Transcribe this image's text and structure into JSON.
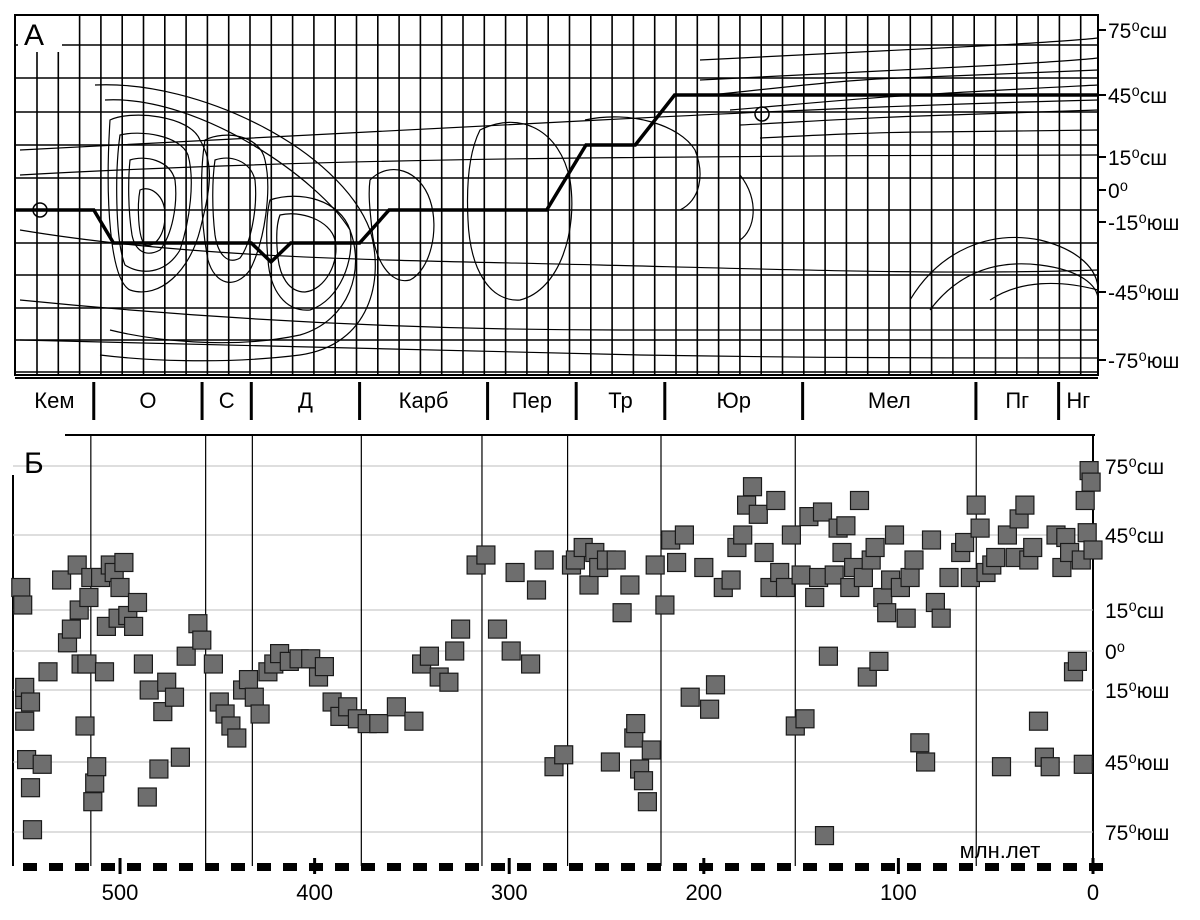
{
  "chart_data": [
    {
      "type": "line",
      "panel_label": "А",
      "y_tick_labels": [
        "75⁰сш",
        "45⁰сш",
        "15⁰сш",
        "0⁰",
        "-15⁰юш",
        "-45⁰юш",
        "-75⁰юш"
      ],
      "y_ticks": [
        75,
        45,
        15,
        0,
        -15,
        -45,
        -75
      ],
      "ylim": [
        -90,
        90
      ],
      "xlim": [
        550,
        0
      ],
      "x_reversed": true,
      "periods": [
        {
          "label": "Кем",
          "start": 550,
          "end": 510
        },
        {
          "label": "О",
          "start": 510,
          "end": 455
        },
        {
          "label": "С",
          "start": 455,
          "end": 430
        },
        {
          "label": "Д",
          "start": 430,
          "end": 375
        },
        {
          "label": "Карб",
          "start": 375,
          "end": 310
        },
        {
          "label": "Пер",
          "start": 310,
          "end": 265
        },
        {
          "label": "Тр",
          "start": 265,
          "end": 220
        },
        {
          "label": "Юр",
          "start": 220,
          "end": 150
        },
        {
          "label": "Мел",
          "start": 150,
          "end": 62
        },
        {
          "label": "Пг",
          "start": 62,
          "end": 20
        },
        {
          "label": "Нг",
          "start": 20,
          "end": 0
        }
      ],
      "series": [
        {
          "x": [
            550,
            510,
            500,
            455,
            430,
            420,
            410,
            375,
            360,
            355,
            345,
            280,
            260,
            245,
            235,
            215,
            205,
            0
          ],
          "y": [
            0,
            0,
            -15,
            -15,
            -15,
            -23,
            -15,
            -15,
            0,
            0,
            0,
            0,
            30,
            30,
            30,
            45,
            45,
            45
          ]
        }
      ],
      "grid": true
    },
    {
      "type": "scatter",
      "panel_label": "Б",
      "xlabel": "млн.лет",
      "xlim": [
        555,
        0
      ],
      "x_reversed": true,
      "x_ticks": [
        500,
        400,
        300,
        200,
        100,
        0
      ],
      "ylim": [
        -90,
        90
      ],
      "y_ticks": [
        75,
        45,
        15,
        0,
        -15,
        -45,
        -75
      ],
      "y_tick_labels": [
        "75⁰сш",
        "45⁰сш",
        "15⁰сш",
        "0⁰",
        "15⁰юш",
        "45⁰юш",
        "75⁰юш"
      ],
      "period_boundaries": [
        515,
        456,
        432,
        376,
        314,
        270,
        222,
        153,
        60
      ],
      "grid": true,
      "points": [
        [
          551,
          24
        ],
        [
          550,
          17
        ],
        [
          549,
          -19
        ],
        [
          549,
          -14
        ],
        [
          549,
          -28
        ],
        [
          548,
          -44
        ],
        [
          546,
          -56
        ],
        [
          545,
          -74
        ],
        [
          546,
          -20
        ],
        [
          540,
          -46
        ],
        [
          537,
          -8
        ],
        [
          530,
          27
        ],
        [
          527,
          3
        ],
        [
          525,
          8
        ],
        [
          522,
          33
        ],
        [
          518,
          -30
        ],
        [
          520,
          -5
        ],
        [
          521,
          15
        ],
        [
          517,
          -5
        ],
        [
          516,
          20
        ],
        [
          515,
          28
        ],
        [
          514,
          -62
        ],
        [
          513,
          -54
        ],
        [
          512,
          -47
        ],
        [
          510,
          28
        ],
        [
          508,
          -8
        ],
        [
          507,
          9
        ],
        [
          505,
          33
        ],
        [
          503,
          30
        ],
        [
          501,
          12
        ],
        [
          500,
          24
        ],
        [
          498,
          34
        ],
        [
          496,
          13
        ],
        [
          493,
          9
        ],
        [
          491,
          18
        ],
        [
          488,
          -5
        ],
        [
          486,
          -60
        ],
        [
          485,
          -15
        ],
        [
          480,
          -48
        ],
        [
          478,
          -24
        ],
        [
          476,
          -12
        ],
        [
          472,
          -18
        ],
        [
          469,
          -43
        ],
        [
          466,
          -2
        ],
        [
          460,
          10
        ],
        [
          458,
          4
        ],
        [
          452,
          -5
        ],
        [
          449,
          -20
        ],
        [
          446,
          -25
        ],
        [
          443,
          -30
        ],
        [
          440,
          -35
        ],
        [
          437,
          -15
        ],
        [
          434,
          -11
        ],
        [
          431,
          -18
        ],
        [
          428,
          -25
        ],
        [
          424,
          -8
        ],
        [
          421,
          -5
        ],
        [
          418,
          -1
        ],
        [
          413,
          -4
        ],
        [
          408,
          -3
        ],
        [
          402,
          -3
        ],
        [
          398,
          -10
        ],
        [
          395,
          -6
        ],
        [
          391,
          -20
        ],
        [
          387,
          -26
        ],
        [
          383,
          -22
        ],
        [
          378,
          -27
        ],
        [
          373,
          -29
        ],
        [
          367,
          -29
        ],
        [
          358,
          -22
        ],
        [
          349,
          -28
        ],
        [
          345,
          -5
        ],
        [
          341,
          -2
        ],
        [
          336,
          -10
        ],
        [
          331,
          -12
        ],
        [
          328,
          0
        ],
        [
          325,
          8
        ],
        [
          317,
          33
        ],
        [
          312,
          37
        ],
        [
          306,
          8
        ],
        [
          299,
          0
        ],
        [
          297,
          30
        ],
        [
          289,
          -5
        ],
        [
          286,
          23
        ],
        [
          282,
          35
        ],
        [
          277,
          -47
        ],
        [
          272,
          -42
        ],
        [
          268,
          33
        ],
        [
          266,
          35
        ],
        [
          262,
          40
        ],
        [
          259,
          25
        ],
        [
          256,
          38
        ],
        [
          254,
          32
        ],
        [
          250,
          35
        ],
        [
          248,
          -45
        ],
        [
          245,
          35
        ],
        [
          242,
          14
        ],
        [
          238,
          25
        ],
        [
          236,
          -35
        ],
        [
          235,
          -29
        ],
        [
          233,
          -48
        ],
        [
          231,
          -53
        ],
        [
          229,
          -62
        ],
        [
          227,
          -40
        ],
        [
          225,
          33
        ],
        [
          220,
          17
        ],
        [
          217,
          43
        ],
        [
          214,
          34
        ],
        [
          210,
          45
        ],
        [
          207,
          -18
        ],
        [
          200,
          32
        ],
        [
          197,
          -23
        ],
        [
          194,
          -13
        ],
        [
          190,
          24
        ],
        [
          186,
          27
        ],
        [
          183,
          40
        ],
        [
          180,
          45
        ],
        [
          178,
          58
        ],
        [
          175,
          66
        ],
        [
          172,
          54
        ],
        [
          169,
          38
        ],
        [
          166,
          24
        ],
        [
          163,
          60
        ],
        [
          161,
          30
        ],
        [
          158,
          24
        ],
        [
          155,
          45
        ],
        [
          153,
          -30
        ],
        [
          150,
          29
        ],
        [
          148,
          -27
        ],
        [
          146,
          53
        ],
        [
          143,
          20
        ],
        [
          141,
          28
        ],
        [
          139,
          55
        ],
        [
          138,
          -78
        ],
        [
          136,
          -2
        ],
        [
          133,
          29
        ],
        [
          131,
          48
        ],
        [
          129,
          38
        ],
        [
          127,
          49
        ],
        [
          125,
          24
        ],
        [
          123,
          32
        ],
        [
          120,
          60
        ],
        [
          118,
          28
        ],
        [
          116,
          -10
        ],
        [
          114,
          35
        ],
        [
          112,
          40
        ],
        [
          110,
          -4
        ],
        [
          108,
          20
        ],
        [
          106,
          14
        ],
        [
          104,
          27
        ],
        [
          102,
          45
        ],
        [
          99,
          24
        ],
        [
          96,
          12
        ],
        [
          94,
          28
        ],
        [
          92,
          35
        ],
        [
          89,
          -37
        ],
        [
          86,
          -45
        ],
        [
          83,
          43
        ],
        [
          81,
          18
        ],
        [
          78,
          12
        ],
        [
          74,
          28
        ],
        [
          68,
          38
        ],
        [
          66,
          42
        ],
        [
          63,
          28
        ],
        [
          60,
          58
        ],
        [
          58,
          48
        ],
        [
          55,
          30
        ],
        [
          52,
          33
        ],
        [
          50,
          36
        ],
        [
          47,
          -47
        ],
        [
          44,
          45
        ],
        [
          40,
          36
        ],
        [
          38,
          52
        ],
        [
          35,
          58
        ],
        [
          33,
          35
        ],
        [
          31,
          40
        ],
        [
          28,
          -28
        ],
        [
          25,
          -43
        ],
        [
          22,
          -47
        ],
        [
          19,
          45
        ],
        [
          16,
          32
        ],
        [
          14,
          44
        ],
        [
          12,
          38
        ],
        [
          10,
          -8
        ],
        [
          8,
          -4
        ],
        [
          6,
          35
        ],
        [
          5,
          -46
        ],
        [
          4,
          60
        ],
        [
          3,
          46
        ],
        [
          2,
          73
        ],
        [
          1,
          68
        ],
        [
          0,
          39
        ]
      ]
    }
  ]
}
